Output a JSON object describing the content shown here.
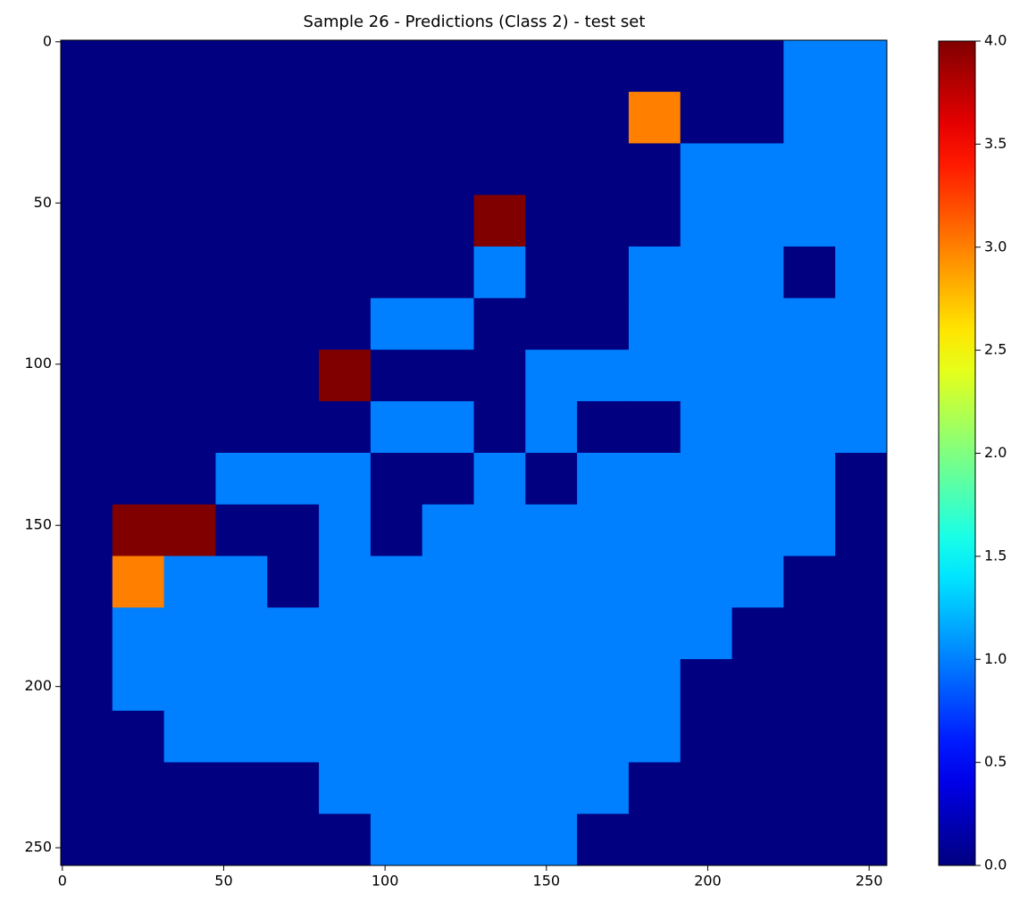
{
  "chart_data": {
    "type": "heatmap",
    "title": "Sample 26 - Predictions (Class 2) - test set",
    "colormap": "jet",
    "clim": [
      0,
      4
    ],
    "xlim": [
      -0.5,
      255.5
    ],
    "ylim": [
      255.5,
      -0.5
    ],
    "xticks": [
      0,
      50,
      100,
      150,
      200,
      250
    ],
    "yticks": [
      0,
      50,
      100,
      150,
      200,
      250
    ],
    "cticks": [
      {
        "value": 0,
        "label": "0.0"
      },
      {
        "value": 0.5,
        "label": "0.5"
      },
      {
        "value": 1,
        "label": "1.0"
      },
      {
        "value": 1.5,
        "label": "1.5"
      },
      {
        "value": 2,
        "label": "2.0"
      },
      {
        "value": 2.5,
        "label": "2.5"
      },
      {
        "value": 3,
        "label": "3.0"
      },
      {
        "value": 3.5,
        "label": "3.5"
      },
      {
        "value": 4,
        "label": "4.0"
      }
    ],
    "z": [
      [
        0,
        0,
        0,
        0,
        0,
        0,
        0,
        0,
        0,
        0,
        0,
        0,
        0,
        0,
        1,
        1
      ],
      [
        0,
        0,
        0,
        0,
        0,
        0,
        0,
        0,
        0,
        0,
        0,
        3,
        0,
        0,
        1,
        1
      ],
      [
        0,
        0,
        0,
        0,
        0,
        0,
        0,
        0,
        0,
        0,
        0,
        0,
        1,
        1,
        1,
        1
      ],
      [
        0,
        0,
        0,
        0,
        0,
        0,
        0,
        0,
        4,
        0,
        0,
        0,
        1,
        1,
        1,
        1
      ],
      [
        0,
        0,
        0,
        0,
        0,
        0,
        0,
        0,
        1,
        0,
        0,
        1,
        1,
        1,
        0,
        1
      ],
      [
        0,
        0,
        0,
        0,
        0,
        0,
        1,
        1,
        0,
        0,
        0,
        1,
        1,
        1,
        1,
        1
      ],
      [
        0,
        0,
        0,
        0,
        0,
        4,
        0,
        0,
        0,
        1,
        1,
        1,
        1,
        1,
        1,
        1
      ],
      [
        0,
        0,
        0,
        0,
        0,
        0,
        1,
        1,
        0,
        1,
        0,
        0,
        1,
        1,
        1,
        1
      ],
      [
        0,
        0,
        0,
        1,
        1,
        1,
        0,
        0,
        1,
        0,
        1,
        1,
        1,
        1,
        1,
        0
      ],
      [
        0,
        4,
        4,
        0,
        0,
        1,
        0,
        1,
        1,
        1,
        1,
        1,
        1,
        1,
        1,
        0
      ],
      [
        0,
        3,
        1,
        1,
        0,
        1,
        1,
        1,
        1,
        1,
        1,
        1,
        1,
        1,
        0,
        0
      ],
      [
        0,
        1,
        1,
        1,
        1,
        1,
        1,
        1,
        1,
        1,
        1,
        1,
        1,
        0,
        0,
        0
      ],
      [
        0,
        1,
        1,
        1,
        1,
        1,
        1,
        1,
        1,
        1,
        1,
        1,
        0,
        0,
        0,
        0
      ],
      [
        0,
        0,
        1,
        1,
        1,
        1,
        1,
        1,
        1,
        1,
        1,
        1,
        0,
        0,
        0,
        0
      ],
      [
        0,
        0,
        0,
        0,
        0,
        1,
        1,
        1,
        1,
        1,
        1,
        0,
        0,
        0,
        0,
        0
      ],
      [
        0,
        0,
        0,
        0,
        0,
        0,
        1,
        1,
        1,
        1,
        0,
        0,
        0,
        0,
        0,
        0
      ]
    ]
  }
}
